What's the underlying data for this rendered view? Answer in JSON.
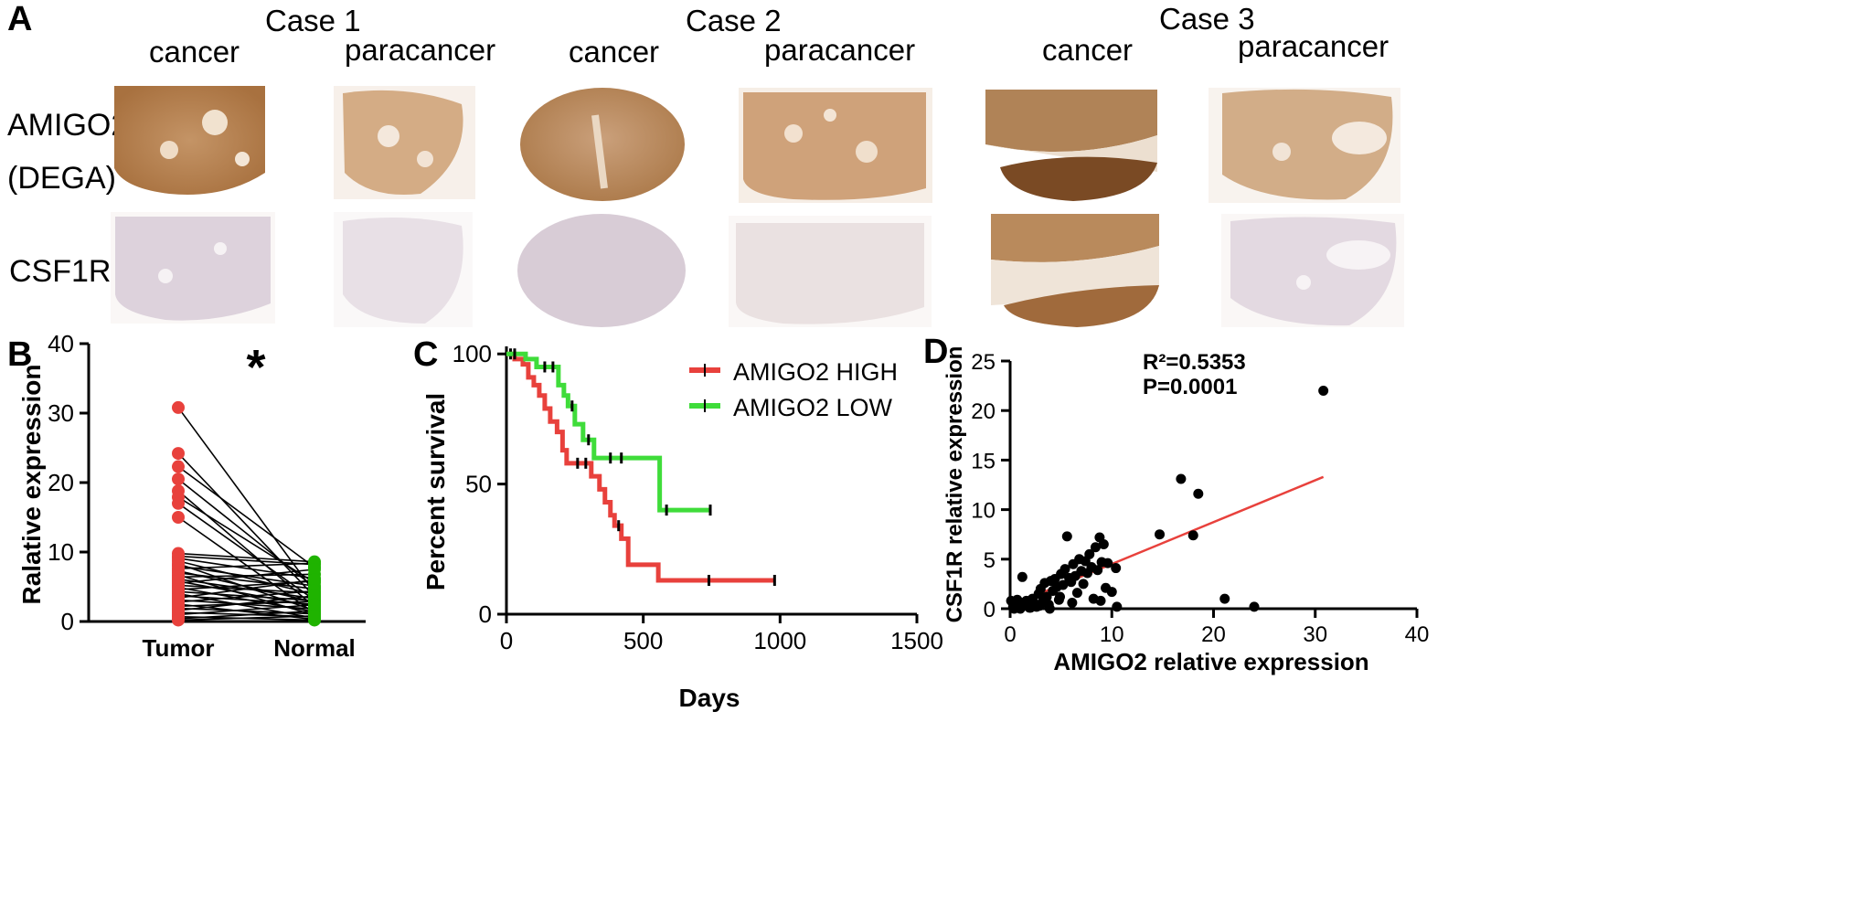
{
  "panel_a": {
    "label": "A",
    "cases": [
      "Case 1",
      "Case 2",
      "Case 3"
    ],
    "tissue_labels": [
      "cancer",
      "paracancer",
      "cancer",
      "paracancer",
      "cancer",
      "paracancer"
    ],
    "row_labels": {
      "amigo2_line1": "AMIGO2",
      "amigo2_line2": "(DEGA)",
      "csf1r": "CSF1R"
    },
    "colors": {
      "amigo2_stain": "#b98a5c",
      "csf1r_stain": "#d9cfd7",
      "csf1r_positive": "#b98a5c",
      "background": "#f6f1ec"
    }
  },
  "chart_data": [
    {
      "panel": "B",
      "type": "scatter",
      "ylabel": "Ralative expression",
      "categories": [
        "Tumor",
        "Normal"
      ],
      "ylim": [
        0,
        40
      ],
      "yticks": [
        "0",
        "10",
        "20",
        "30",
        "40"
      ],
      "annotation": "*",
      "colors": {
        "tumor": "#e8413c",
        "normal": "#1fb300"
      },
      "pairs": [
        [
          30.8,
          4.2
        ],
        [
          24.2,
          3.6
        ],
        [
          22.3,
          7.8
        ],
        [
          20.5,
          4.9
        ],
        [
          18.8,
          2.1
        ],
        [
          17.9,
          5.6
        ],
        [
          17.0,
          3.1
        ],
        [
          15.0,
          1.2
        ],
        [
          9.8,
          8.6
        ],
        [
          9.4,
          8.2
        ],
        [
          9.1,
          6.2
        ],
        [
          8.7,
          3.9
        ],
        [
          8.3,
          1.6
        ],
        [
          8.0,
          5.1
        ],
        [
          7.6,
          8.4
        ],
        [
          7.3,
          2.8
        ],
        [
          7.0,
          4.7
        ],
        [
          6.7,
          0.9
        ],
        [
          6.4,
          6.8
        ],
        [
          6.1,
          3.3
        ],
        [
          5.8,
          2.2
        ],
        [
          5.5,
          7.5
        ],
        [
          5.2,
          4.1
        ],
        [
          4.9,
          1.4
        ],
        [
          4.6,
          5.8
        ],
        [
          4.3,
          3.0
        ],
        [
          4.0,
          0.5
        ],
        [
          3.7,
          2.5
        ],
        [
          3.4,
          6.0
        ],
        [
          3.1,
          1.8
        ],
        [
          2.8,
          4.4
        ],
        [
          2.5,
          0.3
        ],
        [
          2.2,
          2.9
        ],
        [
          1.9,
          1.1
        ],
        [
          1.6,
          3.7
        ],
        [
          1.3,
          0.7
        ],
        [
          1.0,
          2.4
        ],
        [
          0.7,
          0.2
        ],
        [
          0.4,
          1.5
        ],
        [
          0.2,
          0.8
        ]
      ]
    },
    {
      "panel": "C",
      "type": "line",
      "xlabel": "Days",
      "ylabel": "Percent survival",
      "xlim": [
        0,
        1500
      ],
      "ylim": [
        0,
        105
      ],
      "xticks": [
        "0",
        "500",
        "1000",
        "1500"
      ],
      "yticks": [
        "0",
        "50",
        "100"
      ],
      "series": [
        {
          "name": "AMIGO2 HIGH",
          "color": "#e8413c",
          "steps": [
            [
              0,
              100
            ],
            [
              30,
              98
            ],
            [
              60,
              96
            ],
            [
              80,
              91
            ],
            [
              100,
              88
            ],
            [
              120,
              84
            ],
            [
              140,
              79
            ],
            [
              160,
              74
            ],
            [
              185,
              70
            ],
            [
              205,
              63
            ],
            [
              220,
              58
            ],
            [
              310,
              53
            ],
            [
              340,
              48
            ],
            [
              360,
              43
            ],
            [
              380,
              38
            ],
            [
              395,
              34
            ],
            [
              420,
              29
            ],
            [
              445,
              19
            ],
            [
              555,
              13
            ],
            [
              980,
              13
            ]
          ],
          "censored": [
            [
              15,
              100
            ],
            [
              260,
              58
            ],
            [
              290,
              58
            ],
            [
              410,
              34
            ],
            [
              740,
              13
            ],
            [
              980,
              13
            ]
          ]
        },
        {
          "name": "AMIGO2 LOW",
          "color": "#3fdc3a",
          "steps": [
            [
              0,
              100
            ],
            [
              70,
              98
            ],
            [
              110,
              95
            ],
            [
              190,
              88
            ],
            [
              210,
              84
            ],
            [
              225,
              80
            ],
            [
              250,
              73
            ],
            [
              280,
              67
            ],
            [
              320,
              60
            ],
            [
              560,
              40
            ],
            [
              745,
              40
            ]
          ],
          "censored": [
            [
              30,
              100
            ],
            [
              140,
              95
            ],
            [
              170,
              95
            ],
            [
              240,
              80
            ],
            [
              300,
              67
            ],
            [
              380,
              60
            ],
            [
              420,
              60
            ],
            [
              585,
              40
            ],
            [
              745,
              40
            ]
          ]
        }
      ]
    },
    {
      "panel": "D",
      "type": "scatter",
      "xlabel": "AMIGO2 relative expression",
      "ylabel": "CSF1R relative expression",
      "xlim": [
        0,
        40
      ],
      "ylim": [
        0,
        25
      ],
      "xticks": [
        "0",
        "10",
        "20",
        "30",
        "40"
      ],
      "yticks": [
        "0",
        "5",
        "10",
        "15",
        "20",
        "25"
      ],
      "stat_r2": "R²=0.5353",
      "stat_p": "P=0.0001",
      "fit": {
        "x": [
          0.5,
          30.8
        ],
        "y": [
          0.5,
          13.3
        ],
        "color": "#e8413c"
      },
      "points": [
        [
          0.1,
          0.8
        ],
        [
          0.3,
          0.2
        ],
        [
          0.5,
          0.5
        ],
        [
          0.7,
          0.9
        ],
        [
          0.9,
          0.1
        ],
        [
          1.1,
          0.6
        ],
        [
          1.2,
          3.2
        ],
        [
          1.4,
          0.3
        ],
        [
          1.6,
          0.8
        ],
        [
          1.8,
          0.4
        ],
        [
          2.0,
          0.1
        ],
        [
          2.2,
          1.0
        ],
        [
          2.4,
          0.5
        ],
        [
          2.6,
          0.2
        ],
        [
          2.8,
          1.5
        ],
        [
          3.0,
          2.0
        ],
        [
          3.2,
          0.7
        ],
        [
          3.4,
          2.6
        ],
        [
          3.6,
          1.2
        ],
        [
          3.8,
          0.4
        ],
        [
          4.0,
          2.8
        ],
        [
          4.2,
          1.8
        ],
        [
          4.4,
          3.0
        ],
        [
          4.6,
          2.2
        ],
        [
          4.8,
          0.9
        ],
        [
          5.0,
          3.5
        ],
        [
          5.2,
          2.4
        ],
        [
          5.4,
          4.0
        ],
        [
          5.6,
          7.3
        ],
        [
          5.8,
          3.1
        ],
        [
          6.0,
          2.7
        ],
        [
          6.2,
          4.5
        ],
        [
          6.4,
          3.3
        ],
        [
          6.6,
          1.6
        ],
        [
          6.8,
          5.0
        ],
        [
          7.0,
          3.8
        ],
        [
          7.2,
          2.5
        ],
        [
          7.4,
          4.8
        ],
        [
          7.6,
          3.6
        ],
        [
          7.8,
          5.5
        ],
        [
          8.0,
          4.2
        ],
        [
          8.2,
          1.0
        ],
        [
          8.4,
          6.2
        ],
        [
          8.6,
          3.9
        ],
        [
          8.8,
          7.2
        ],
        [
          9.0,
          4.7
        ],
        [
          9.2,
          6.5
        ],
        [
          9.4,
          2.1
        ],
        [
          9.6,
          4.6
        ],
        [
          10.0,
          1.7
        ],
        [
          10.4,
          4.1
        ],
        [
          10.5,
          0.2
        ],
        [
          0.4,
          0.0
        ],
        [
          1.0,
          0.0
        ],
        [
          1.9,
          0.1
        ],
        [
          2.9,
          0.3
        ],
        [
          3.9,
          0.0
        ],
        [
          4.9,
          1.2
        ],
        [
          6.1,
          0.6
        ],
        [
          8.9,
          0.8
        ],
        [
          14.7,
          7.5
        ],
        [
          16.8,
          13.1
        ],
        [
          18.0,
          7.4
        ],
        [
          18.5,
          11.6
        ],
        [
          21.1,
          1.0
        ],
        [
          24.0,
          0.2
        ],
        [
          30.8,
          22.0
        ]
      ]
    }
  ]
}
